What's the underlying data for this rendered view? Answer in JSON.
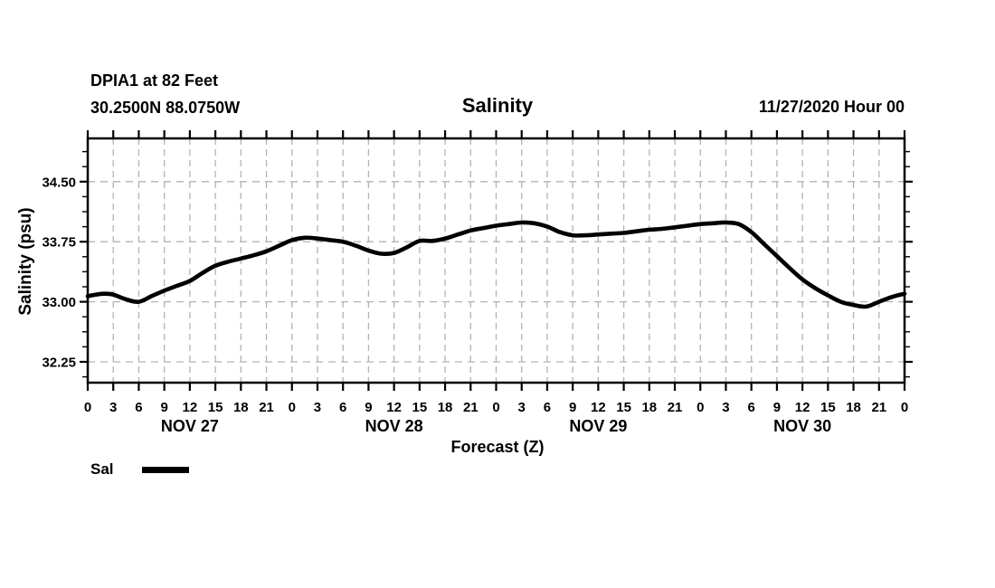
{
  "header": {
    "station_line1": "DPIA1 at 82 Feet",
    "station_line2": "30.2500N 88.0750W",
    "title": "Salinity",
    "run_label": "11/27/2020 Hour 00"
  },
  "chart_data": {
    "type": "line",
    "title": "Salinity",
    "xlabel": "Forecast (Z)",
    "ylabel": "Salinity (psu)",
    "xlim": [
      0,
      96
    ],
    "ylim": [
      31.99,
      35.04
    ],
    "grid": "dashed",
    "legend_position": "bottom-left",
    "y_major_ticks": [
      {
        "value": 32.25,
        "label": "32.25"
      },
      {
        "value": 33.0,
        "label": "33.00"
      },
      {
        "value": 33.75,
        "label": "33.75"
      },
      {
        "value": 34.5,
        "label": "34.50"
      }
    ],
    "y_minor_step": 0.1875,
    "x_ticks": [
      {
        "hour": 0,
        "label": "0"
      },
      {
        "hour": 3,
        "label": "3"
      },
      {
        "hour": 6,
        "label": "6"
      },
      {
        "hour": 9,
        "label": "9"
      },
      {
        "hour": 12,
        "label": "12"
      },
      {
        "hour": 15,
        "label": "15"
      },
      {
        "hour": 18,
        "label": "18"
      },
      {
        "hour": 21,
        "label": "21"
      },
      {
        "hour": 24,
        "label": "0"
      },
      {
        "hour": 27,
        "label": "3"
      },
      {
        "hour": 30,
        "label": "6"
      },
      {
        "hour": 33,
        "label": "9"
      },
      {
        "hour": 36,
        "label": "12"
      },
      {
        "hour": 39,
        "label": "15"
      },
      {
        "hour": 42,
        "label": "18"
      },
      {
        "hour": 45,
        "label": "21"
      },
      {
        "hour": 48,
        "label": "0"
      },
      {
        "hour": 51,
        "label": "3"
      },
      {
        "hour": 54,
        "label": "6"
      },
      {
        "hour": 57,
        "label": "9"
      },
      {
        "hour": 60,
        "label": "12"
      },
      {
        "hour": 63,
        "label": "15"
      },
      {
        "hour": 66,
        "label": "18"
      },
      {
        "hour": 69,
        "label": "21"
      },
      {
        "hour": 72,
        "label": "0"
      },
      {
        "hour": 75,
        "label": "3"
      },
      {
        "hour": 78,
        "label": "6"
      },
      {
        "hour": 81,
        "label": "9"
      },
      {
        "hour": 84,
        "label": "12"
      },
      {
        "hour": 87,
        "label": "15"
      },
      {
        "hour": 90,
        "label": "18"
      },
      {
        "hour": 93,
        "label": "21"
      },
      {
        "hour": 96,
        "label": "0"
      }
    ],
    "day_labels": [
      {
        "hour": 12,
        "label": "NOV 27"
      },
      {
        "hour": 36,
        "label": "NOV 28"
      },
      {
        "hour": 60,
        "label": "NOV 29"
      },
      {
        "hour": 84,
        "label": "NOV 30"
      }
    ],
    "series": [
      {
        "name": "Sal",
        "color": "#000000",
        "points": [
          [
            0,
            33.07
          ],
          [
            1,
            33.09
          ],
          [
            2,
            33.1
          ],
          [
            3,
            33.09
          ],
          [
            4.5,
            33.03
          ],
          [
            6,
            33.0
          ],
          [
            7.5,
            33.07
          ],
          [
            9,
            33.14
          ],
          [
            10.5,
            33.2
          ],
          [
            12,
            33.26
          ],
          [
            13.5,
            33.36
          ],
          [
            15,
            33.45
          ],
          [
            16.5,
            33.5
          ],
          [
            18,
            33.54
          ],
          [
            19.5,
            33.58
          ],
          [
            21,
            33.63
          ],
          [
            22.5,
            33.7
          ],
          [
            24,
            33.77
          ],
          [
            25.5,
            33.8
          ],
          [
            27,
            33.79
          ],
          [
            28.5,
            33.77
          ],
          [
            30,
            33.75
          ],
          [
            31.5,
            33.7
          ],
          [
            33,
            33.64
          ],
          [
            34.5,
            33.6
          ],
          [
            36,
            33.61
          ],
          [
            37.5,
            33.68
          ],
          [
            39,
            33.76
          ],
          [
            40.5,
            33.76
          ],
          [
            42,
            33.79
          ],
          [
            43.5,
            33.84
          ],
          [
            45,
            33.89
          ],
          [
            46.5,
            33.92
          ],
          [
            48,
            33.95
          ],
          [
            49.5,
            33.97
          ],
          [
            51,
            33.99
          ],
          [
            52.5,
            33.98
          ],
          [
            54,
            33.94
          ],
          [
            55.5,
            33.87
          ],
          [
            57,
            33.83
          ],
          [
            58.5,
            33.83
          ],
          [
            60,
            33.84
          ],
          [
            61.5,
            33.85
          ],
          [
            63,
            33.86
          ],
          [
            64.5,
            33.88
          ],
          [
            66,
            33.9
          ],
          [
            67.5,
            33.91
          ],
          [
            69,
            33.93
          ],
          [
            70.5,
            33.95
          ],
          [
            72,
            33.97
          ],
          [
            73.5,
            33.98
          ],
          [
            75,
            33.99
          ],
          [
            76.5,
            33.97
          ],
          [
            78,
            33.87
          ],
          [
            79.5,
            33.72
          ],
          [
            81,
            33.57
          ],
          [
            82.5,
            33.42
          ],
          [
            84,
            33.28
          ],
          [
            85.5,
            33.17
          ],
          [
            87,
            33.08
          ],
          [
            88.5,
            33.0
          ],
          [
            90,
            32.96
          ],
          [
            91.5,
            32.94
          ],
          [
            93,
            33.0
          ],
          [
            94.5,
            33.06
          ],
          [
            96,
            33.1
          ]
        ]
      }
    ]
  }
}
